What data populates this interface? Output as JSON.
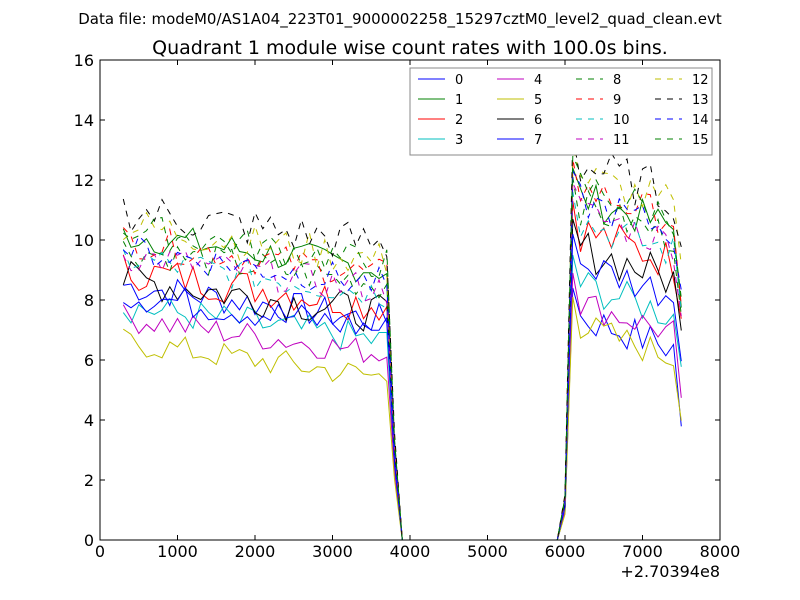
{
  "chart_data": {
    "type": "line",
    "suptitle": "Data file: modeM0/AS1A04_223T01_9000002258_15297cztM0_level2_quad_clean.evt",
    "title": "Quadrant 1 module wise count rates with 100.0s bins.",
    "xlabel": "",
    "ylabel": "",
    "xlim": [
      0,
      8000
    ],
    "ylim": [
      0,
      16
    ],
    "x_ticks": [
      "0",
      "1000",
      "2000",
      "3000",
      "4000",
      "5000",
      "6000",
      "7000",
      "8000"
    ],
    "y_ticks": [
      "0",
      "2",
      "4",
      "6",
      "8",
      "10",
      "12",
      "14",
      "16"
    ],
    "x_offset_label": "+2.70394e8",
    "grid": false,
    "legend_position": "top-right",
    "legend_columns": 4,
    "x_segment_1": [
      300,
      3700
    ],
    "x_segment_2": [
      6100,
      7500
    ],
    "bin_width": 100,
    "series": [
      {
        "name": "0",
        "color": "#0000ff",
        "dash": "solid",
        "level1": 7.7,
        "level2": 7.5,
        "amp": 0.35
      },
      {
        "name": "1",
        "color": "#008000",
        "dash": "solid",
        "level1": 9.4,
        "level2": 11.5,
        "amp": 0.35
      },
      {
        "name": "2",
        "color": "#ff0000",
        "dash": "solid",
        "level1": 8.2,
        "level2": 10.4,
        "amp": 0.4
      },
      {
        "name": "3",
        "color": "#00bfbf",
        "dash": "solid",
        "level1": 7.0,
        "level2": 8.6,
        "amp": 0.35
      },
      {
        "name": "4",
        "color": "#bf00bf",
        "dash": "solid",
        "level1": 6.6,
        "level2": 8.0,
        "amp": 0.3
      },
      {
        "name": "5",
        "color": "#bfbf00",
        "dash": "solid",
        "level1": 5.8,
        "level2": 7.2,
        "amp": 0.3
      },
      {
        "name": "6",
        "color": "#000000",
        "dash": "solid",
        "level1": 7.9,
        "level2": 9.8,
        "amp": 0.4
      },
      {
        "name": "7",
        "color": "#0000ff",
        "dash": "solid",
        "level1": 7.4,
        "level2": 9.3,
        "amp": 0.35
      },
      {
        "name": "8",
        "color": "#008000",
        "dash": "dashed",
        "level1": 8.9,
        "level2": 11.2,
        "amp": 0.35
      },
      {
        "name": "9",
        "color": "#ff0000",
        "dash": "dashed",
        "level1": 9.2,
        "level2": 11.8,
        "amp": 0.35
      },
      {
        "name": "10",
        "color": "#00bfbf",
        "dash": "dashed",
        "level1": 8.6,
        "level2": 10.7,
        "amp": 0.35
      },
      {
        "name": "11",
        "color": "#bf00bf",
        "dash": "dashed",
        "level1": 8.7,
        "level2": 11.0,
        "amp": 0.35
      },
      {
        "name": "12",
        "color": "#bfbf00",
        "dash": "dashed",
        "level1": 9.7,
        "level2": 12.2,
        "amp": 0.4
      },
      {
        "name": "13",
        "color": "#000000",
        "dash": "dashed",
        "level1": 10.2,
        "level2": 12.6,
        "amp": 0.45
      },
      {
        "name": "14",
        "color": "#0000ff",
        "dash": "dashed",
        "level1": 8.9,
        "level2": 11.4,
        "amp": 0.35
      },
      {
        "name": "15",
        "color": "#008000",
        "dash": "dashed",
        "level1": 9.6,
        "level2": 11.9,
        "amp": 0.35
      }
    ]
  }
}
